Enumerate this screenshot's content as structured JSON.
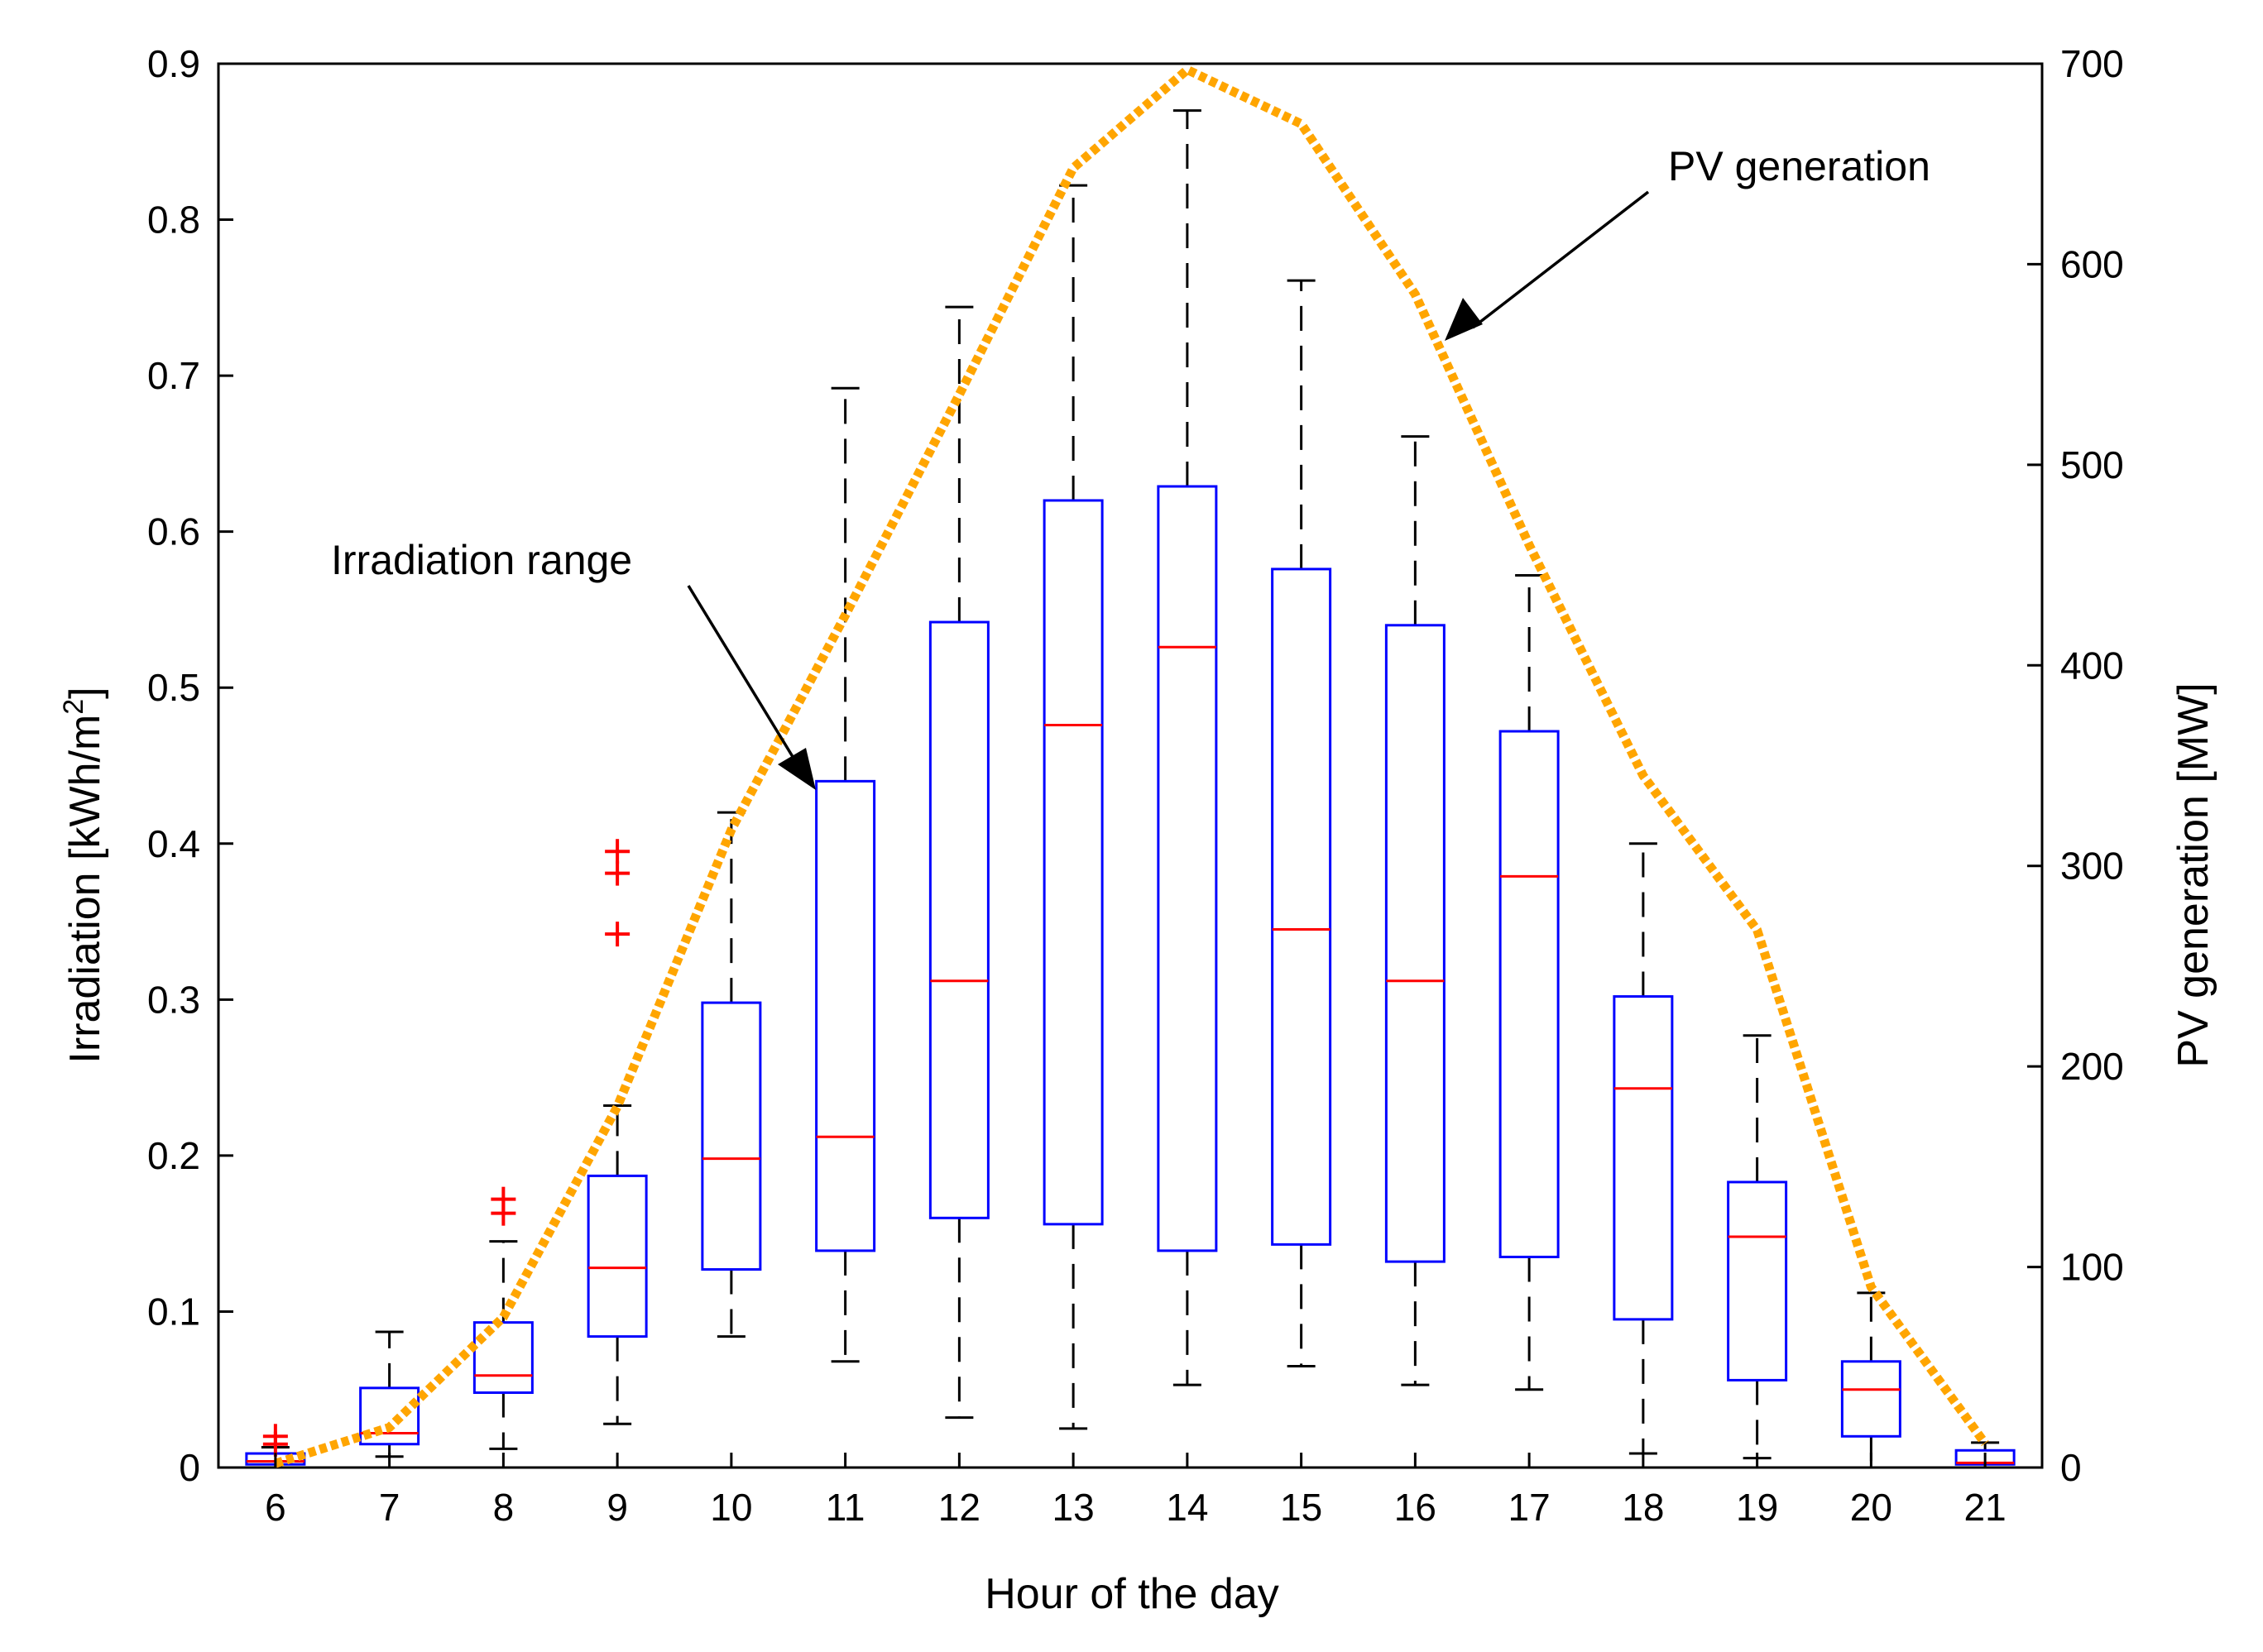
{
  "chart_data": {
    "type": "boxplot",
    "title": "",
    "xlabel": "Hour of the day",
    "ylabel_left": "Irradiation [kWh/m",
    "ylabel_left_sup": "2",
    "ylabel_left_close": "]",
    "ylabel_right": "PV generation [MW]",
    "ylim_left": [
      0,
      0.9
    ],
    "ylim_right": [
      0,
      700
    ],
    "yticks_left": [
      "0",
      "0.1",
      "0.2",
      "0.3",
      "0.4",
      "0.5",
      "0.6",
      "0.7",
      "0.8",
      "0.9"
    ],
    "yticks_right": [
      "0",
      "100",
      "200",
      "300",
      "400",
      "500",
      "600",
      "700"
    ],
    "categories": [
      "6",
      "7",
      "8",
      "9",
      "10",
      "11",
      "12",
      "13",
      "14",
      "15",
      "16",
      "17",
      "18",
      "19",
      "20",
      "21"
    ],
    "boxes": [
      {
        "hour": 6,
        "whisker_low": 0.0,
        "q1": 0.002,
        "median": 0.004,
        "q3": 0.009,
        "whisker_high": 0.013,
        "outliers": [
          0.015,
          0.02
        ]
      },
      {
        "hour": 7,
        "whisker_low": 0.007,
        "q1": 0.015,
        "median": 0.022,
        "q3": 0.051,
        "whisker_high": 0.087,
        "outliers": []
      },
      {
        "hour": 8,
        "whisker_low": 0.012,
        "q1": 0.048,
        "median": 0.059,
        "q3": 0.093,
        "whisker_high": 0.145,
        "outliers": [
          0.163,
          0.172
        ]
      },
      {
        "hour": 9,
        "whisker_low": 0.028,
        "q1": 0.084,
        "median": 0.128,
        "q3": 0.187,
        "whisker_high": 0.232,
        "outliers": [
          0.342,
          0.381,
          0.395
        ]
      },
      {
        "hour": 10,
        "whisker_low": 0.084,
        "q1": 0.127,
        "median": 0.198,
        "q3": 0.298,
        "whisker_high": 0.42,
        "outliers": []
      },
      {
        "hour": 11,
        "whisker_low": 0.068,
        "q1": 0.139,
        "median": 0.212,
        "q3": 0.44,
        "whisker_high": 0.692,
        "outliers": []
      },
      {
        "hour": 12,
        "whisker_low": 0.032,
        "q1": 0.16,
        "median": 0.312,
        "q3": 0.542,
        "whisker_high": 0.744,
        "outliers": []
      },
      {
        "hour": 13,
        "whisker_low": 0.025,
        "q1": 0.156,
        "median": 0.476,
        "q3": 0.62,
        "whisker_high": 0.822,
        "outliers": []
      },
      {
        "hour": 14,
        "whisker_low": 0.053,
        "q1": 0.139,
        "median": 0.526,
        "q3": 0.629,
        "whisker_high": 0.87,
        "outliers": []
      },
      {
        "hour": 15,
        "whisker_low": 0.065,
        "q1": 0.143,
        "median": 0.345,
        "q3": 0.576,
        "whisker_high": 0.761,
        "outliers": []
      },
      {
        "hour": 16,
        "whisker_low": 0.053,
        "q1": 0.132,
        "median": 0.312,
        "q3": 0.54,
        "whisker_high": 0.661,
        "outliers": []
      },
      {
        "hour": 17,
        "whisker_low": 0.05,
        "q1": 0.135,
        "median": 0.379,
        "q3": 0.472,
        "whisker_high": 0.572,
        "outliers": []
      },
      {
        "hour": 18,
        "whisker_low": 0.009,
        "q1": 0.095,
        "median": 0.243,
        "q3": 0.302,
        "whisker_high": 0.4,
        "outliers": []
      },
      {
        "hour": 19,
        "whisker_low": 0.006,
        "q1": 0.056,
        "median": 0.148,
        "q3": 0.183,
        "whisker_high": 0.277,
        "outliers": []
      },
      {
        "hour": 20,
        "whisker_low": 0.0,
        "q1": 0.02,
        "median": 0.05,
        "q3": 0.068,
        "whisker_high": 0.112,
        "outliers": []
      },
      {
        "hour": 21,
        "whisker_low": 0.0,
        "q1": 0.002,
        "median": 0.003,
        "q3": 0.011,
        "whisker_high": 0.016,
        "outliers": []
      }
    ],
    "pv_series": {
      "name": "PV generation",
      "axis": "right",
      "x": [
        6,
        7,
        8,
        9,
        10,
        11,
        12,
        13,
        14,
        15,
        16,
        17,
        18,
        19,
        20,
        21
      ],
      "values": [
        2,
        20,
        75,
        180,
        318,
        425,
        535,
        648,
        697,
        670,
        585,
        460,
        345,
        268,
        90,
        12
      ]
    },
    "annotations": [
      {
        "text": "PV generation",
        "points_to_hour": 16.3,
        "points_to_value_right": 565
      },
      {
        "text": "Irradiation range",
        "points_to_hour": 11,
        "points_to_value_left": 0.435
      }
    ],
    "colors": {
      "box": "#0000ff",
      "median": "#ff0000",
      "whisker": "#000000",
      "outlier": "#ff0000",
      "pv_line": "#ffa500",
      "axis": "#000000"
    }
  }
}
